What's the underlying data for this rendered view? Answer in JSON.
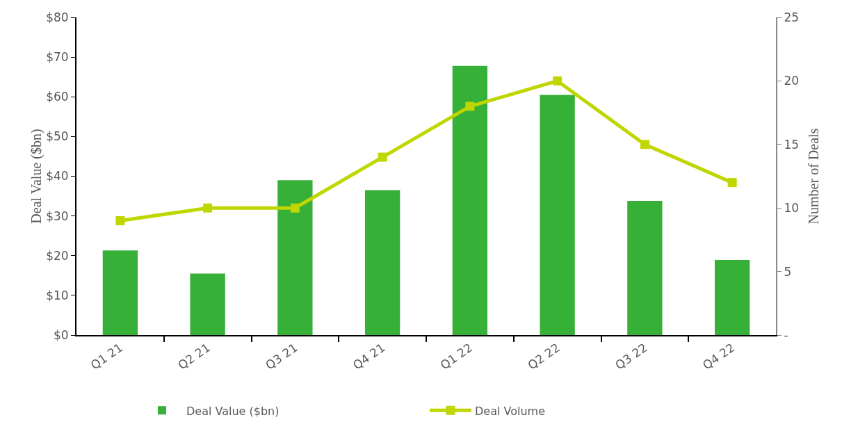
{
  "chart_data": {
    "type": "bar",
    "ylabel": "Deal Value ($bn)",
    "y2label": "Number of Deals",
    "categories": [
      "Q1 21",
      "Q2 21",
      "Q3 21",
      "Q4 21",
      "Q1 22",
      "Q2 22",
      "Q3 22",
      "Q4 22"
    ],
    "series": [
      {
        "name": "Deal Value ($bn)",
        "color": "#36b037",
        "values": [
          21.3,
          15.5,
          39.0,
          36.5,
          67.8,
          60.5,
          33.8,
          18.9
        ]
      },
      {
        "name": "Deal Volume",
        "type": "line",
        "axis": "y2",
        "color": "#bfd600",
        "marker": "square",
        "values": [
          9,
          10,
          10,
          14,
          18,
          20,
          15,
          12
        ]
      }
    ],
    "ylim": [
      0,
      80
    ],
    "yticks": [
      {
        "value": 0,
        "label": "$0"
      },
      {
        "value": 10,
        "label": "$10"
      },
      {
        "value": 20,
        "label": "$20"
      },
      {
        "value": 30,
        "label": "$30"
      },
      {
        "value": 40,
        "label": "$40"
      },
      {
        "value": 50,
        "label": "$50"
      },
      {
        "value": 60,
        "label": "$60"
      },
      {
        "value": 70,
        "label": "$70"
      },
      {
        "value": 80,
        "label": "$80"
      }
    ],
    "y2lim": [
      0,
      25
    ],
    "y2ticks": [
      {
        "value": 0,
        "label": "-"
      },
      5,
      10,
      15,
      20,
      25
    ],
    "legend": "bottom"
  }
}
